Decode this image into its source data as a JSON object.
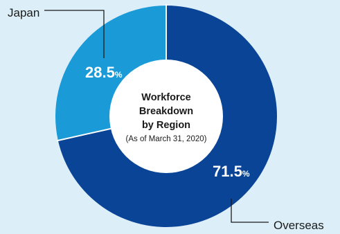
{
  "chart_data": {
    "type": "pie",
    "title_lines": [
      "Workforce",
      "Breakdown",
      "by Region"
    ],
    "subtitle": "(As of March 31, 2020)",
    "slices": [
      {
        "label": "Japan",
        "value": 28.5,
        "unit": "%",
        "color": "#1b9ad8"
      },
      {
        "label": "Overseas",
        "value": 71.5,
        "unit": "%",
        "color": "#0a4496"
      }
    ],
    "separator_color": "#ffffff",
    "center_color": "#ffffff",
    "leader_line_color": "#1a1a1a"
  }
}
